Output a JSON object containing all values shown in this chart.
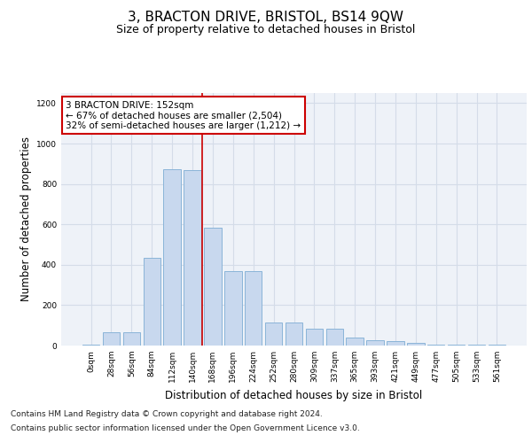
{
  "title": "3, BRACTON DRIVE, BRISTOL, BS14 9QW",
  "subtitle": "Size of property relative to detached houses in Bristol",
  "xlabel": "Distribution of detached houses by size in Bristol",
  "ylabel": "Number of detached properties",
  "categories": [
    "0sqm",
    "28sqm",
    "56sqm",
    "84sqm",
    "112sqm",
    "140sqm",
    "168sqm",
    "196sqm",
    "224sqm",
    "252sqm",
    "280sqm",
    "309sqm",
    "337sqm",
    "365sqm",
    "393sqm",
    "421sqm",
    "449sqm",
    "477sqm",
    "505sqm",
    "533sqm",
    "561sqm"
  ],
  "values": [
    5,
    65,
    65,
    435,
    875,
    870,
    585,
    370,
    370,
    115,
    115,
    85,
    85,
    40,
    25,
    20,
    15,
    5,
    5,
    3,
    3
  ],
  "bar_color": "#c8d8ee",
  "bar_edge_color": "#8ab4d8",
  "grid_color": "#d4dce8",
  "background_color": "#eef2f8",
  "red_line_x": 5.5,
  "annotation_text": "3 BRACTON DRIVE: 152sqm\n← 67% of detached houses are smaller (2,504)\n32% of semi-detached houses are larger (1,212) →",
  "annotation_box_color": "#ffffff",
  "annotation_border_color": "#cc0000",
  "footer_line1": "Contains HM Land Registry data © Crown copyright and database right 2024.",
  "footer_line2": "Contains public sector information licensed under the Open Government Licence v3.0.",
  "ylim": [
    0,
    1250
  ],
  "yticks": [
    0,
    200,
    400,
    600,
    800,
    1000,
    1200
  ],
  "title_fontsize": 11,
  "subtitle_fontsize": 9,
  "axis_label_fontsize": 8.5,
  "tick_fontsize": 6.5,
  "footer_fontsize": 6.5,
  "annotation_fontsize": 7.5
}
